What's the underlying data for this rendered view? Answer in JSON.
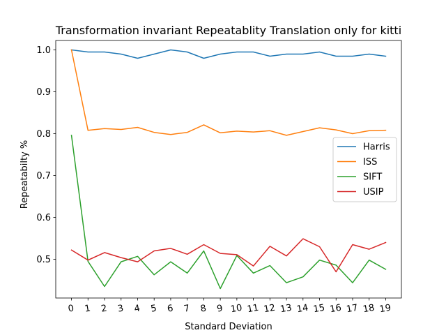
{
  "chart_data": {
    "type": "line",
    "title": "Transformation invariant Repeatablity Translation only for kitti",
    "xlabel": "Standard Deviation",
    "ylabel": "Repeatabilty %",
    "x": [
      0,
      1,
      2,
      3,
      4,
      5,
      6,
      7,
      8,
      9,
      10,
      11,
      12,
      13,
      14,
      15,
      16,
      17,
      18,
      19
    ],
    "x_tick_labels": [
      "0",
      "1",
      "2",
      "3",
      "4",
      "5",
      "6",
      "7",
      "8",
      "9",
      "10",
      "11",
      "12",
      "13",
      "14",
      "15",
      "16",
      "17",
      "18",
      "19"
    ],
    "y_ticks": [
      0.5,
      0.6,
      0.7,
      0.8,
      0.9,
      1.0
    ],
    "y_tick_labels": [
      "0.5",
      "0.6",
      "0.7",
      "0.8",
      "0.9",
      "1.0"
    ],
    "xlim": [
      -0.95,
      19.95
    ],
    "ylim": [
      0.4075,
      1.0225
    ],
    "grid": false,
    "legend_position": "center-right",
    "series": [
      {
        "name": "Harris",
        "color": "#1f77b4",
        "values": [
          1.0,
          0.995,
          0.995,
          0.99,
          0.98,
          0.99,
          1.0,
          0.995,
          0.98,
          0.99,
          0.995,
          0.995,
          0.985,
          0.99,
          0.99,
          0.995,
          0.985,
          0.985,
          0.99,
          0.985
        ]
      },
      {
        "name": "ISS",
        "color": "#ff7f0e",
        "values": [
          1.0,
          0.808,
          0.812,
          0.81,
          0.815,
          0.803,
          0.798,
          0.803,
          0.821,
          0.802,
          0.806,
          0.804,
          0.807,
          0.796,
          0.805,
          0.814,
          0.809,
          0.8,
          0.807,
          0.808
        ]
      },
      {
        "name": "SIFT",
        "color": "#2ca02c",
        "values": [
          0.796,
          0.495,
          0.435,
          0.494,
          0.507,
          0.463,
          0.494,
          0.467,
          0.52,
          0.43,
          0.509,
          0.467,
          0.485,
          0.444,
          0.458,
          0.498,
          0.486,
          0.444,
          0.498,
          0.476
        ]
      },
      {
        "name": "USIP",
        "color": "#d62728",
        "values": [
          0.522,
          0.498,
          0.516,
          0.504,
          0.494,
          0.52,
          0.526,
          0.512,
          0.535,
          0.514,
          0.511,
          0.484,
          0.531,
          0.508,
          0.549,
          0.53,
          0.47,
          0.535,
          0.524,
          0.54
        ]
      }
    ]
  }
}
